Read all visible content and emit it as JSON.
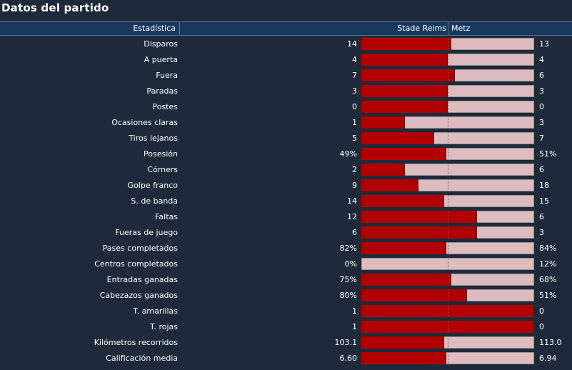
{
  "title": "Datos del partido",
  "header": {
    "stat_label": "Estadística",
    "home_team": "Stade Reims",
    "away_team": "Metz"
  },
  "colors": {
    "home_bar": "#b20000",
    "away_bar": "#dcbcbe",
    "header_bg": "#17395e",
    "page_bg": "#1e2a3a"
  },
  "stats": [
    {
      "label": "Disparos",
      "home": "14",
      "away": "13",
      "home_share": 0.52
    },
    {
      "label": "A puerta",
      "home": "4",
      "away": "4",
      "home_share": 0.5
    },
    {
      "label": "Fuera",
      "home": "7",
      "away": "6",
      "home_share": 0.54
    },
    {
      "label": "Paradas",
      "home": "3",
      "away": "3",
      "home_share": 0.5
    },
    {
      "label": "Postes",
      "home": "0",
      "away": "0",
      "home_share": 0.5
    },
    {
      "label": "Ocasiones claras",
      "home": "1",
      "away": "3",
      "home_share": 0.25
    },
    {
      "label": "Tiros lejanos",
      "home": "5",
      "away": "7",
      "home_share": 0.42
    },
    {
      "label": "Posesión",
      "home": "49%",
      "away": "51%",
      "home_share": 0.49
    },
    {
      "label": "Córners",
      "home": "2",
      "away": "6",
      "home_share": 0.25
    },
    {
      "label": "Golpe franco",
      "home": "9",
      "away": "18",
      "home_share": 0.33
    },
    {
      "label": "S. de banda",
      "home": "14",
      "away": "15",
      "home_share": 0.48
    },
    {
      "label": "Faltas",
      "home": "12",
      "away": "6",
      "home_share": 0.67
    },
    {
      "label": "Fueras de juego",
      "home": "6",
      "away": "3",
      "home_share": 0.67
    },
    {
      "label": "Pases completados",
      "home": "82%",
      "away": "84%",
      "home_share": 0.49
    },
    {
      "label": "Centros completados",
      "home": "0%",
      "away": "12%",
      "home_share": 0.0
    },
    {
      "label": "Entradas ganadas",
      "home": "75%",
      "away": "68%",
      "home_share": 0.52
    },
    {
      "label": "Cabezazos ganados",
      "home": "80%",
      "away": "51%",
      "home_share": 0.61
    },
    {
      "label": "T. amarillas",
      "home": "1",
      "away": "0",
      "home_share": 1.0
    },
    {
      "label": "T. rojas",
      "home": "1",
      "away": "0",
      "home_share": 1.0
    },
    {
      "label": "Kilómetros recorridos",
      "home": "103.1",
      "away": "113.0",
      "home_share": 0.48
    },
    {
      "label": "Calificación media",
      "home": "6.60",
      "away": "6.94",
      "home_share": 0.49
    }
  ]
}
